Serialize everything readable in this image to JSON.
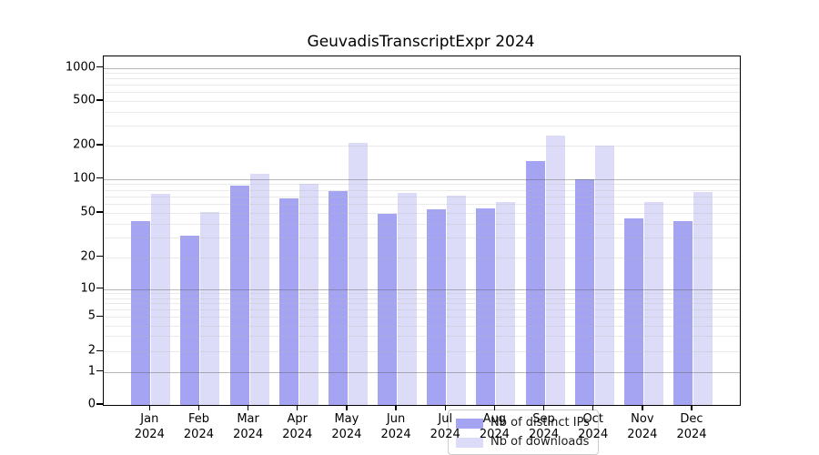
{
  "title": "GeuvadisTranscriptExpr 2024",
  "chart_data": {
    "type": "bar",
    "title": "GeuvadisTranscriptExpr 2024",
    "categories": [
      "Jan",
      "Feb",
      "Mar",
      "Apr",
      "May",
      "Jun",
      "Jul",
      "Aug",
      "Sep",
      "Oct",
      "Nov",
      "Dec"
    ],
    "category_year": "2024",
    "series": [
      {
        "name": "Nb of distinct IPs",
        "color": "#a4a4f2",
        "values": [
          42,
          31,
          88,
          67,
          78,
          49,
          54,
          55,
          146,
          100,
          45,
          42
        ]
      },
      {
        "name": "Nb of downloads",
        "color": "#dcdcf8",
        "values": [
          74,
          51,
          111,
          91,
          212,
          75,
          71,
          62,
          245,
          200,
          63,
          76
        ]
      }
    ],
    "y_ticks": [
      0,
      1,
      2,
      5,
      10,
      20,
      50,
      100,
      200,
      500,
      1000
    ],
    "major_grid_values": [
      1,
      10,
      100,
      1000
    ],
    "minor_grid_values": [
      2,
      3,
      4,
      5,
      6,
      7,
      8,
      9,
      20,
      30,
      40,
      50,
      60,
      70,
      80,
      90,
      200,
      300,
      400,
      500,
      600,
      700,
      800,
      900
    ],
    "scale": "symlog",
    "ylim": [
      0,
      1100
    ],
    "grid": true,
    "legend_position": "lower center"
  },
  "colors": {
    "background": "#ffffff",
    "spine": "#000000",
    "major_grid": "#5f5f5f",
    "minor_grid": "#b9b9b9",
    "legend_border": "#cccccc"
  }
}
